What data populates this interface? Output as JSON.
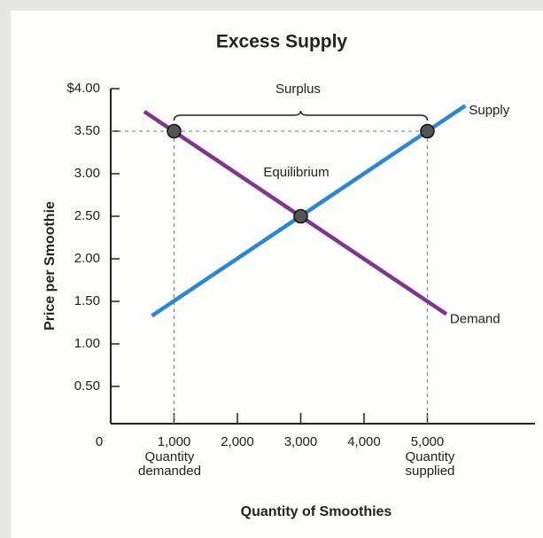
{
  "chart_data": {
    "type": "line",
    "title": "Excess Supply",
    "xlabel": "Quantity of Smoothies",
    "ylabel": "Price per Smoothie",
    "xlim": [
      0,
      6700
    ],
    "ylim": [
      0,
      4
    ],
    "xticks": [
      0,
      {
        "value": 1000,
        "label": "1,000"
      },
      {
        "value": 2000,
        "label": "2,000"
      },
      {
        "value": 3000,
        "label": "3,000"
      },
      {
        "value": 4000,
        "label": "4,000"
      },
      {
        "value": 5000,
        "label": "5,000"
      }
    ],
    "yticks": [
      {
        "value": 0.5,
        "label": "0.50"
      },
      {
        "value": 1,
        "label": "1.00"
      },
      {
        "value": 1.5,
        "label": "1.50"
      },
      {
        "value": 2,
        "label": "2.00"
      },
      {
        "value": 2.5,
        "label": "2.50"
      },
      {
        "value": 3,
        "label": "3.00"
      },
      {
        "value": 3.5,
        "label": "3.50"
      },
      {
        "value": 4,
        "label": "$4.00"
      }
    ],
    "series": [
      {
        "name": "Supply",
        "color": "#2b87d3",
        "x": [
          650,
          5600
        ],
        "values": [
          1.33,
          3.8
        ]
      },
      {
        "name": "Demand",
        "color": "#80368f",
        "x": [
          530,
          5300
        ],
        "values": [
          3.73,
          1.35
        ]
      }
    ],
    "points": [
      {
        "x": 1000,
        "y": 3.5
      },
      {
        "x": 3000,
        "y": 2.5
      },
      {
        "x": 5000,
        "y": 3.5
      }
    ],
    "annotations": {
      "surplus": "Surplus",
      "equilibrium": "Equilibrium",
      "quantity_demanded": [
        "Quantity",
        "demanded"
      ],
      "quantity_supplied": [
        "Quantity",
        "supplied"
      ]
    }
  }
}
